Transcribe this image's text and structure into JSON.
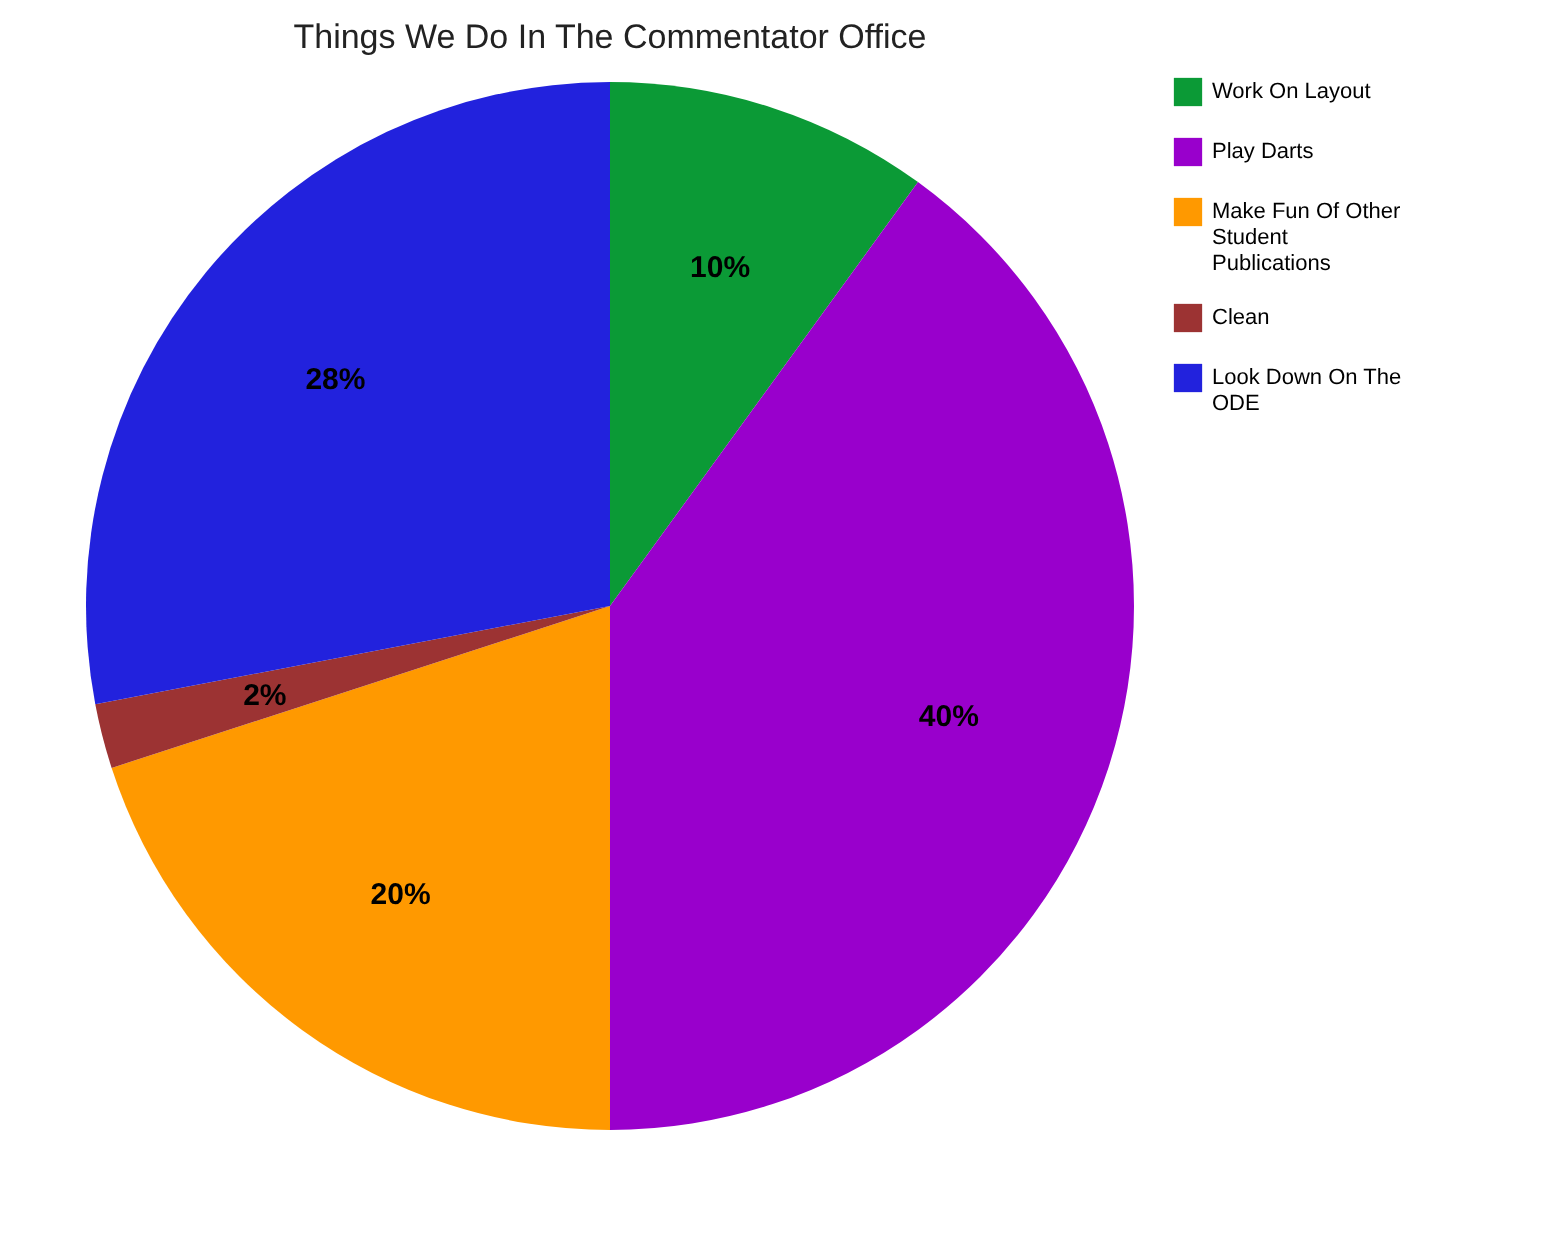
{
  "chart_data": {
    "type": "pie",
    "title": "Things We Do In The Commentator Office",
    "categories": [
      "Work On Layout",
      "Play Darts",
      "Make Fun Of Other Student Publications",
      "Clean",
      "Look Down On The ODE"
    ],
    "values": [
      10,
      40,
      20,
      2,
      28
    ],
    "colors": [
      "#0b9a36",
      "#9900cc",
      "#ff9900",
      "#9c3333",
      "#2222dd"
    ],
    "value_labels": [
      "10%",
      "40%",
      "20%",
      "2%",
      "28%"
    ],
    "legend": "right"
  }
}
